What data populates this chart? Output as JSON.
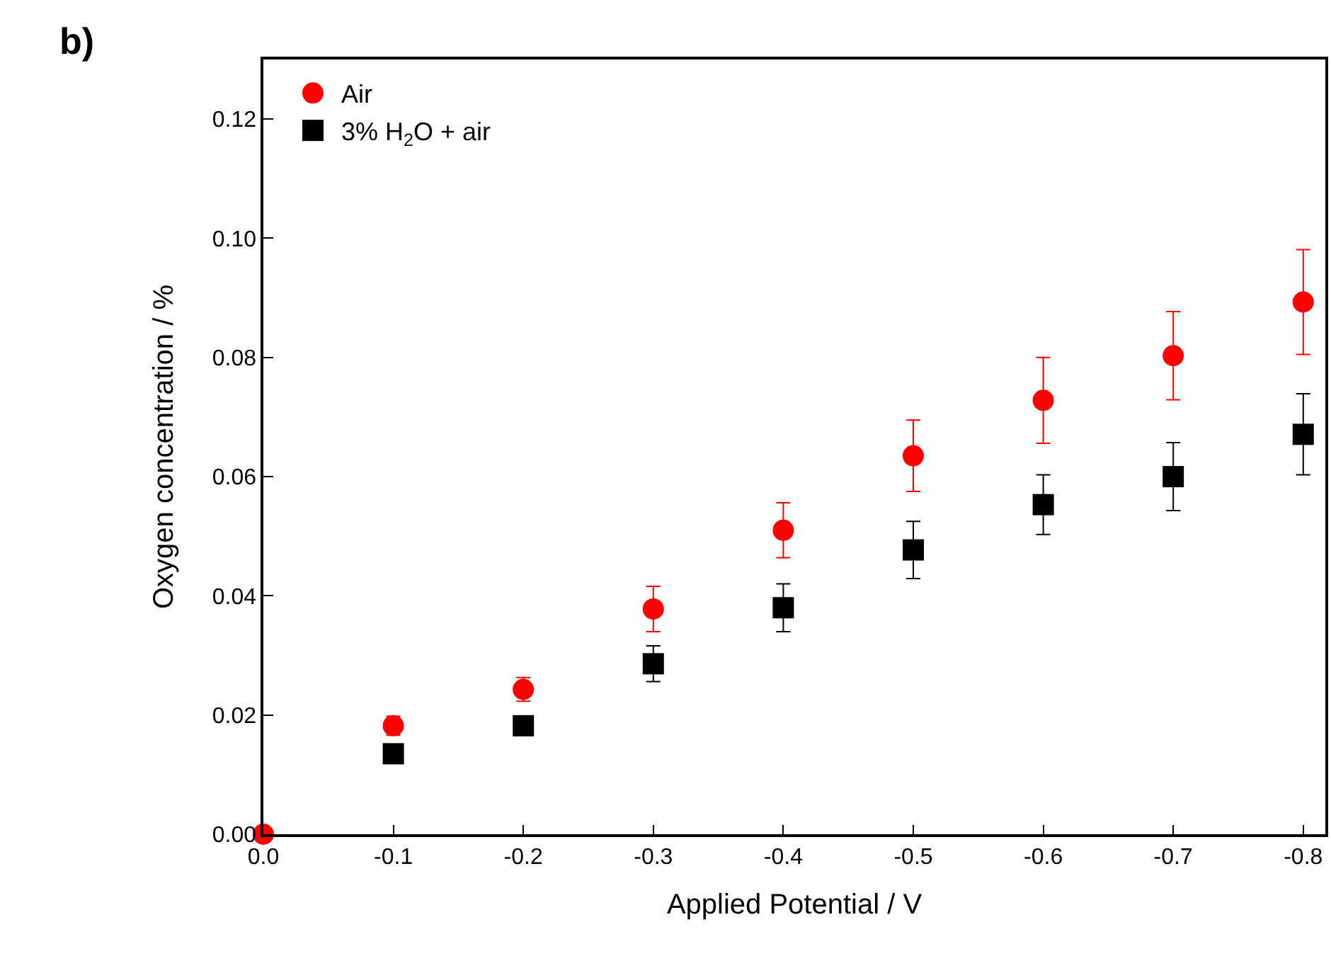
{
  "chart_data": {
    "type": "scatter",
    "xlabel": "Applied Potential / V",
    "ylabel": "Oxygen concentration / %",
    "annotations": [
      "b)"
    ],
    "xlim": [
      0,
      -0.817
    ],
    "ylim": [
      0,
      0.13
    ],
    "xticks": [
      {
        "value": 0,
        "label": "0.0"
      },
      -0.1,
      -0.2,
      -0.3,
      -0.4,
      -0.5,
      -0.6,
      -0.7,
      -0.8
    ],
    "yticks": [
      {
        "value": 0,
        "label": "0.00"
      },
      {
        "value": 0.02,
        "label": "0.02"
      },
      {
        "value": 0.04,
        "label": "0.04"
      },
      {
        "value": 0.06,
        "label": "0.06"
      },
      {
        "value": 0.08,
        "label": "0.08"
      },
      {
        "value": 0.1,
        "label": "0.10"
      },
      {
        "value": 0.12,
        "label": "0.12"
      }
    ],
    "grid": false,
    "legend": "top left",
    "series": [
      {
        "name": "Air",
        "color": "#ff0000",
        "marker": "circle",
        "x": [
          0,
          -0.1,
          -0.2,
          -0.3,
          -0.4,
          -0.5,
          -0.6,
          -0.7,
          -0.8
        ],
        "values": [
          0,
          0.0182,
          0.0243,
          0.0378,
          0.051,
          0.0635,
          0.0728,
          0.0803,
          0.0893
        ],
        "errors": [
          null,
          0.0016,
          0.002,
          0.0038,
          0.0046,
          0.006,
          0.0072,
          0.0074,
          0.0088
        ]
      },
      {
        "name": "3% H$_{2}$O + air",
        "color": "#000000",
        "marker": "square",
        "x": [
          -0.1,
          -0.2,
          -0.3,
          -0.4,
          -0.5,
          -0.6,
          -0.7,
          -0.8
        ],
        "values": [
          0.0135,
          0.0182,
          0.0286,
          0.038,
          0.0477,
          0.0553,
          0.06,
          0.0671
        ],
        "errors": [
          null,
          0.0016,
          0.003,
          0.004,
          0.0048,
          0.005,
          0.0057,
          0.0068
        ]
      }
    ]
  }
}
